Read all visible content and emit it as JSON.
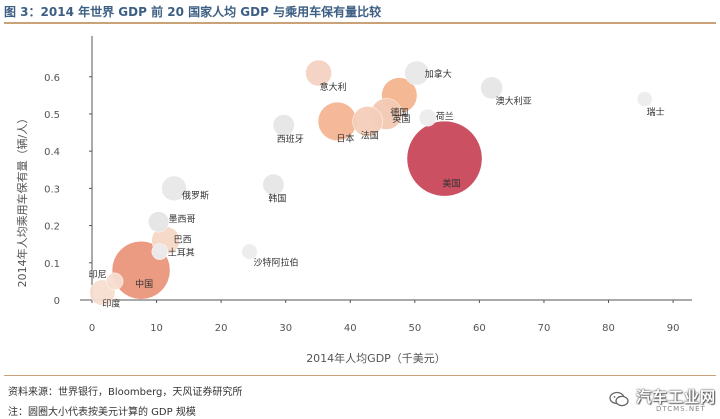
{
  "title": "图 3：2014 年世界 GDP 前 20 国家人均 GDP 与乘用车保有量比较",
  "chart_data": {
    "type": "scatter",
    "title": "图 3：2014 年世界 GDP 前 20 国家人均 GDP 与乘用车保有量比较",
    "xlabel": "2014年人均GDP（千美元）",
    "ylabel": "2014年人均乘用车保有量（辆/人）",
    "xlim": [
      0,
      92
    ],
    "ylim": [
      0,
      0.68
    ],
    "xticks": [
      0,
      10,
      20,
      30,
      40,
      50,
      60,
      70,
      80,
      90
    ],
    "yticks": [
      0,
      0.1,
      0.2,
      0.3,
      0.4,
      0.5,
      0.6
    ],
    "ytick_labels": [
      "0",
      "0.1",
      "0.2",
      "0.3",
      "0.4",
      "0.5",
      "0.6"
    ],
    "grid": false,
    "points": [
      {
        "label": "印度",
        "x": 1.6,
        "y": 0.02,
        "size": 2.0,
        "color": "#f7ddd0"
      },
      {
        "label": "印尼",
        "x": 3.5,
        "y": 0.05,
        "size": 0.9,
        "color": "#f7ddd0"
      },
      {
        "label": "中国",
        "x": 7.6,
        "y": 0.08,
        "size": 10.4,
        "color": "#e9967a"
      },
      {
        "label": "巴西",
        "x": 11.4,
        "y": 0.16,
        "size": 2.4,
        "color": "#f6d7c5"
      },
      {
        "label": "墨西哥",
        "x": 10.3,
        "y": 0.21,
        "size": 1.3,
        "color": "#e5e5e5"
      },
      {
        "label": "土耳其",
        "x": 10.5,
        "y": 0.13,
        "size": 0.8,
        "color": "#ececec"
      },
      {
        "label": "俄罗斯",
        "x": 12.7,
        "y": 0.3,
        "size": 1.9,
        "color": "#e8e8e8"
      },
      {
        "label": "沙特阿拉伯",
        "x": 24.4,
        "y": 0.13,
        "size": 0.75,
        "color": "#ececec"
      },
      {
        "label": "韩国",
        "x": 28.1,
        "y": 0.31,
        "size": 1.4,
        "color": "#e6e6e6"
      },
      {
        "label": "西班牙",
        "x": 29.7,
        "y": 0.47,
        "size": 1.4,
        "color": "#e6e6e6"
      },
      {
        "label": "意大利",
        "x": 35.1,
        "y": 0.61,
        "size": 2.1,
        "color": "#f5d2c2"
      },
      {
        "label": "日本",
        "x": 38.0,
        "y": 0.48,
        "size": 4.6,
        "color": "#f4b493"
      },
      {
        "label": "法国",
        "x": 42.7,
        "y": 0.48,
        "size": 2.8,
        "color": "#f4cdb8"
      },
      {
        "label": "英国",
        "x": 45.6,
        "y": 0.5,
        "size": 3.0,
        "color": "#f2c9b3"
      },
      {
        "label": "德国",
        "x": 47.6,
        "y": 0.55,
        "size": 3.9,
        "color": "#f4b48f"
      },
      {
        "label": "加拿大",
        "x": 50.3,
        "y": 0.61,
        "size": 1.8,
        "color": "#e8e8e8"
      },
      {
        "label": "荷兰",
        "x": 52.0,
        "y": 0.49,
        "size": 0.9,
        "color": "#ececec"
      },
      {
        "label": "美国",
        "x": 54.6,
        "y": 0.38,
        "size": 17.4,
        "color": "#c8475a"
      },
      {
        "label": "澳大利亚",
        "x": 61.9,
        "y": 0.57,
        "size": 1.5,
        "color": "#e6e6e6"
      },
      {
        "label": "瑞士",
        "x": 85.6,
        "y": 0.54,
        "size": 0.7,
        "color": "#ececec"
      }
    ]
  },
  "footer": {
    "source": "资料来源：世界银行，Bloomberg，天风证券研究所",
    "note": "注：圆圈大小代表按美元计算的 GDP 规模"
  },
  "watermark": {
    "text": "汽车工业网",
    "sub": "DTCMS.NET"
  },
  "colors": {
    "title": "#3d5f83",
    "rule": "#c9a277",
    "axis": "#555555",
    "tick_text": "#555555"
  }
}
